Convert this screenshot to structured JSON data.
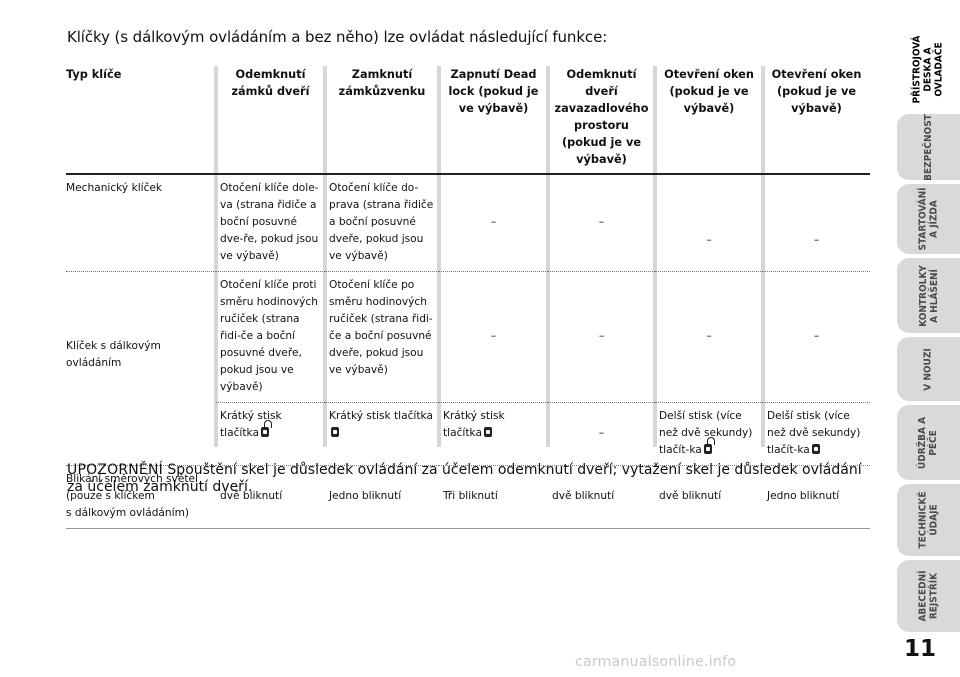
{
  "intro": "Klíčky (s dálkovým ovládáním a bez něho) lze ovládat následující funkce:",
  "table": {
    "headers": [
      "Typ klíče",
      "Odemknutí zámků dveří",
      "Zamknutí zámkůzvenku",
      "Zapnutí Dead lock (pokud je ve výbavě)",
      "Odemknutí dveří zavazadlového prostoru (pokud je ve výbavě)",
      "Otevření oken (pokud je ve výbavě)",
      "Otevření oken (pokud je ve výbavě)"
    ],
    "mechanical": {
      "label": "Mechanický klíček",
      "unlock": "Otočení klíče dole-va (strana řidiče a boční posuvné dve-ře, pokud jsou ve výbavě)",
      "lock": "Otočení klíče do-prava (strana řidiče a boční posuvné dveře, pokud jsou ve výbavě)",
      "deadlock": "–",
      "boot": "–",
      "win_open": "–",
      "win_close": "–"
    },
    "remote_label": "Klíček s dálkovým ovládáním",
    "remote_a": {
      "unlock": "Otočení klíče proti směru hodinových ručiček (strana řidi-če a boční posuvné dveře, pokud jsou ve výbavě)",
      "lock": "Otočení klíče po směru hodinových ručiček (strana řidi-če a boční posuvné dveře, pokud jsou ve výbavě)",
      "deadlock": "–",
      "boot": "–",
      "win_open": "–",
      "win_close": "–"
    },
    "remote_b": {
      "unlock": "Krátký stisk tlačítka",
      "lock": "Krátký stisk tlačítka",
      "deadlock": "Krátký stisk tlačítka",
      "boot": "–",
      "win_open": "Delší stisk (více než dvě sekundy) tlačít-ka",
      "win_close": "Delší stisk (více než dvě sekundy) tlačít-ka"
    },
    "blink": {
      "label_1": "Blikání směrových světel",
      "label_2": "(pouze s klíčkem",
      "label_3": "s dálkovým ovládáním)",
      "unlock": "dvě bliknutí",
      "lock": "Jedno bliknutí",
      "deadlock": "Tři bliknutí",
      "boot": "dvě bliknutí",
      "win_open": "dvě bliknutí",
      "win_close": "Jedno bliknutí"
    }
  },
  "warning": {
    "lead": "UPOZORNĚNÍ",
    "text": " Spouštění skel je důsledek ovládání za účelem odemknutí dveří; vytažení skel je důsledek ovládání za účelem zamknutí dveří."
  },
  "sidebar": {
    "tabs": [
      "PŘÍSTROJOVÁ\nDESKA A\nOVLADAČE",
      "BEZPEČNOST",
      "STARTOVÁNÍ\nA JÍZDA",
      "KONTROLKY\nA HLÁŠENÍ",
      "V NOUZI",
      "ÚDRŽBA A\nPÉČE",
      "TECHNICKÉ\nÚDAJE",
      "ABECEDNÍ\nREJSTŘÍK"
    ]
  },
  "page_number": "11",
  "watermark": "carmanualsonline.info"
}
